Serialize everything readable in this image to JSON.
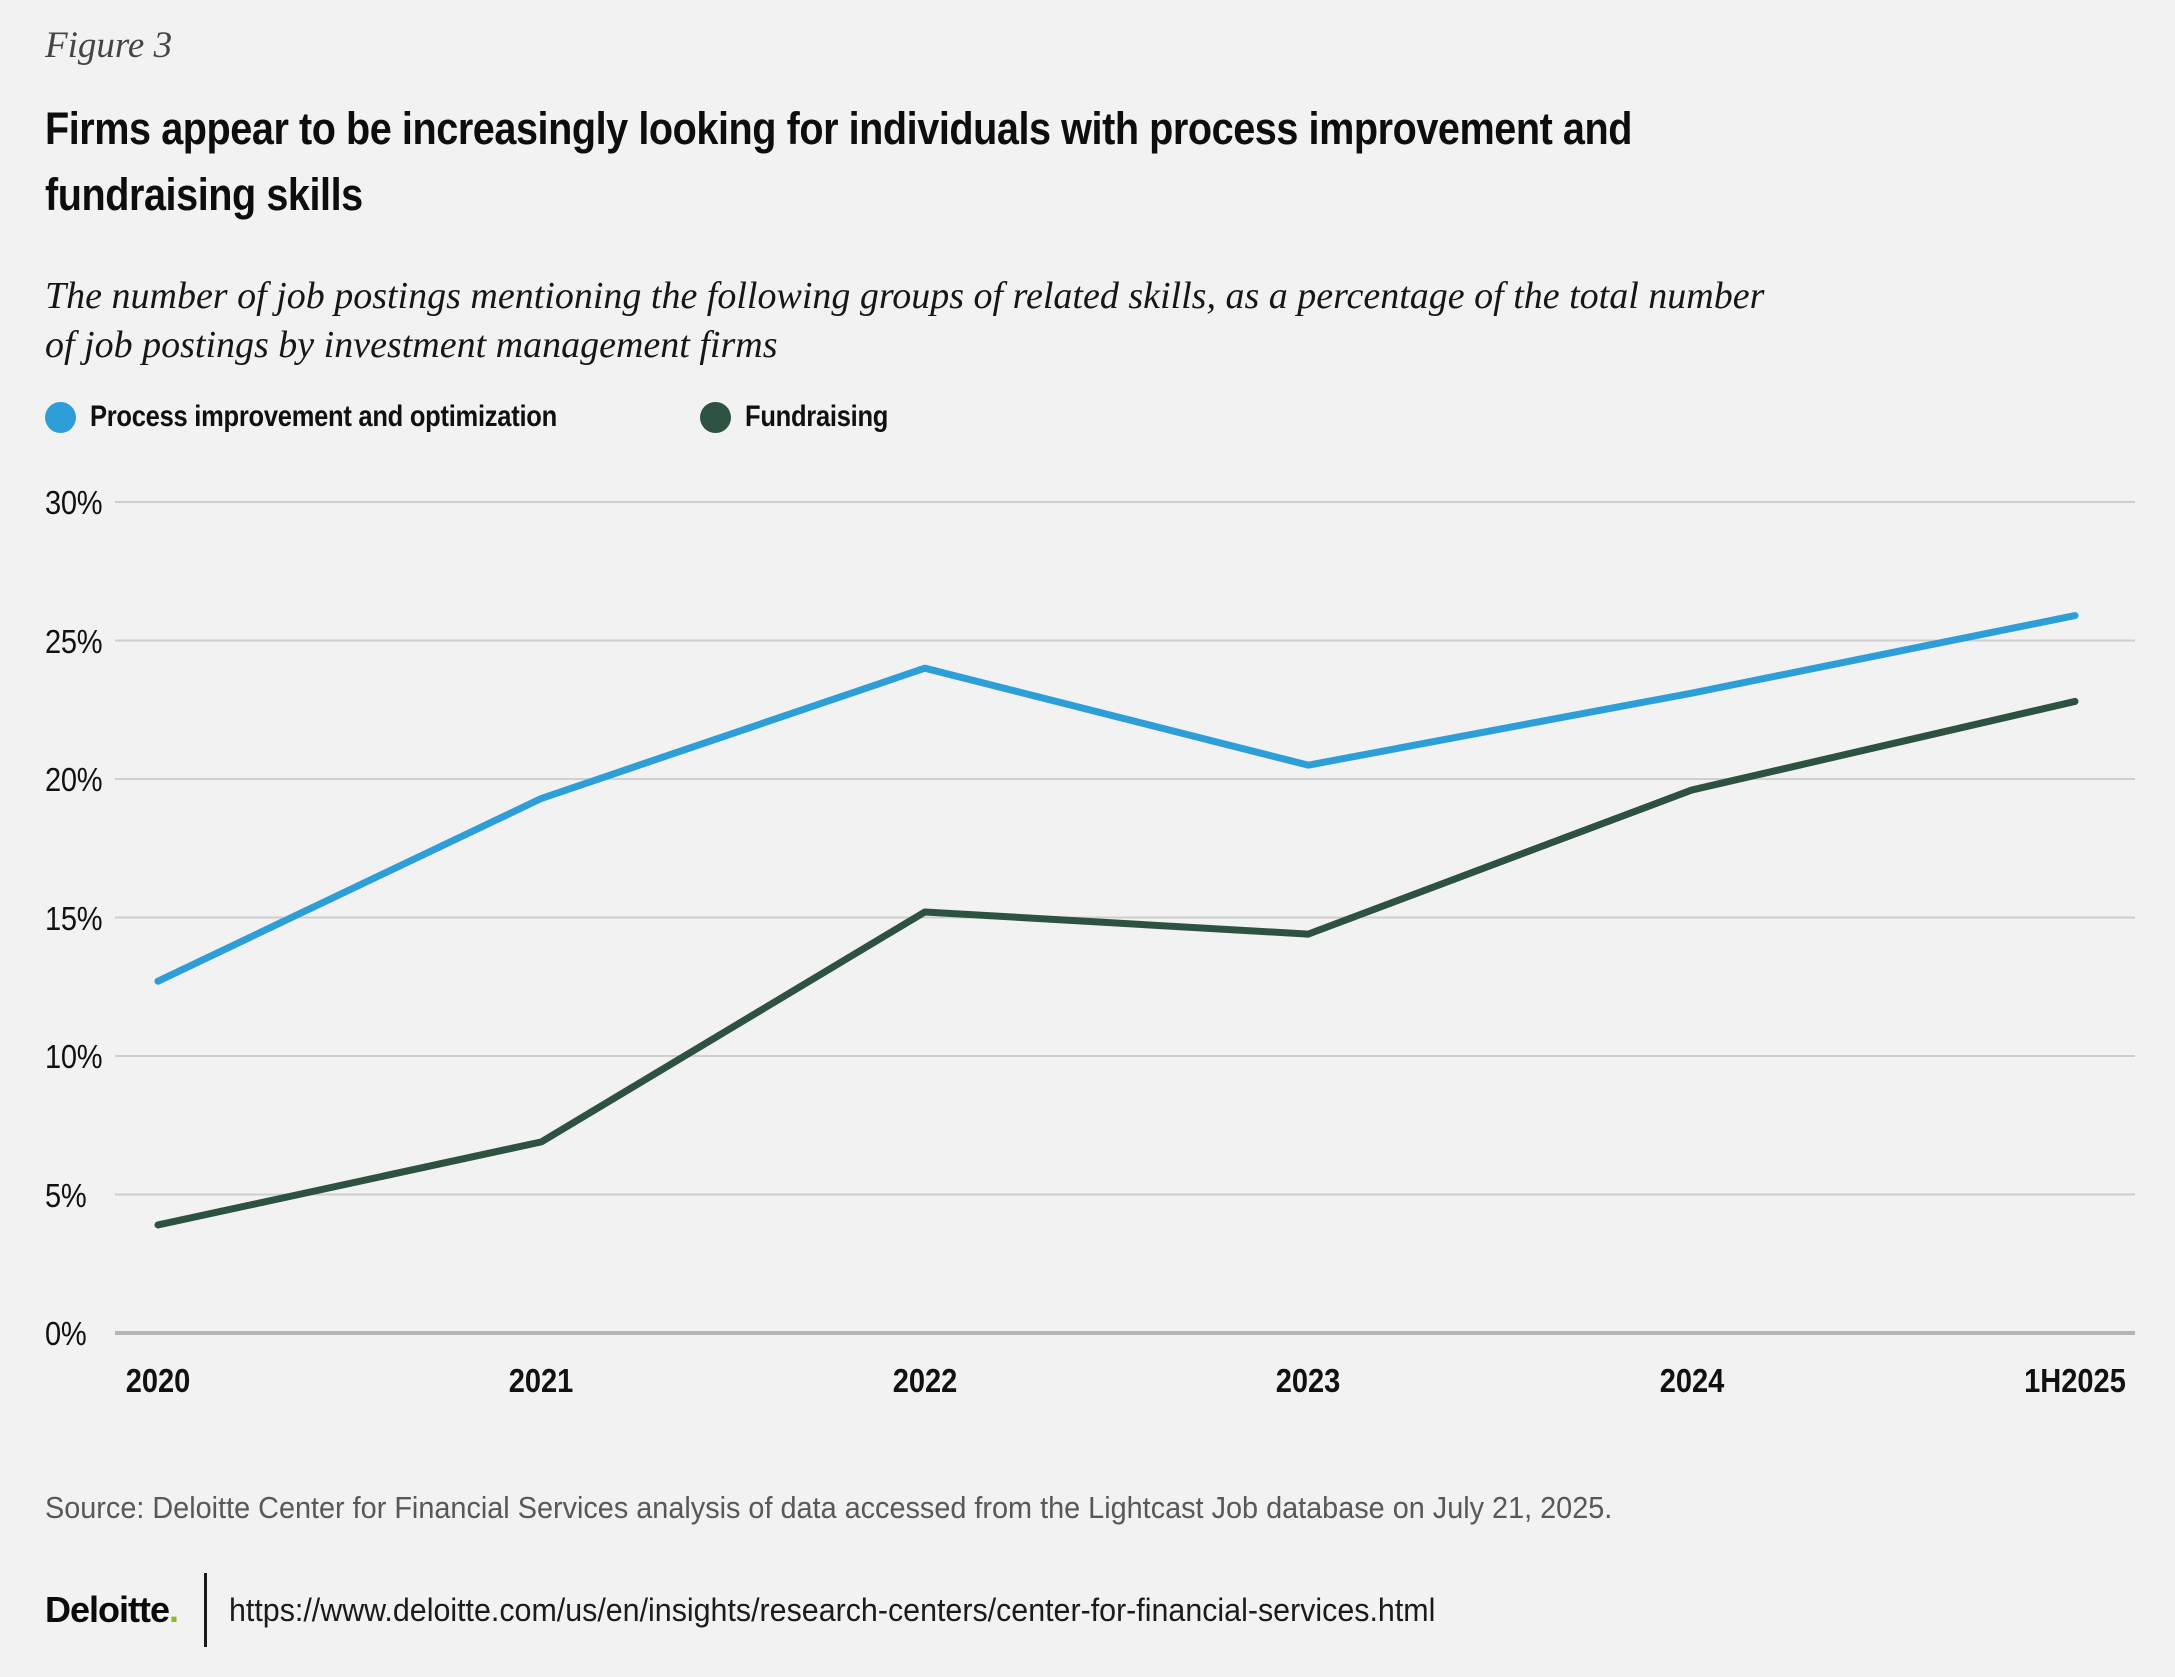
{
  "figure_label": "Figure 3",
  "header": {
    "title_lines": {
      "line1": "Firms appear to be increasingly looking for individuals with process improvement and",
      "line2": "fundraising skills"
    },
    "subtitle_lines": {
      "line1": "The number of job postings mentioning the following groups of related skills, as a percentage of the total number",
      "line2": "of job postings by investment management firms"
    }
  },
  "chart_data": {
    "type": "line",
    "title": "Firms appear to be increasingly looking for individuals with process improvement and fundraising skills",
    "subtitle": "The number of job postings mentioning the following groups of related skills, as a percentage of the total number of job postings by investment management firms",
    "categories": [
      "2020",
      "2021",
      "2022",
      "2023",
      "2024",
      "1H2025"
    ],
    "series": [
      {
        "name": "Process improvement and optimization",
        "color": "#2E9ED9",
        "values": [
          12.7,
          19.3,
          24.0,
          20.5,
          23.1,
          25.9
        ]
      },
      {
        "name": "Fundraising",
        "color": "#2D5242",
        "values": [
          3.9,
          6.9,
          15.2,
          14.4,
          19.6,
          22.8
        ]
      }
    ],
    "xlabel": "",
    "ylabel": "",
    "ylim": [
      0,
      30
    ],
    "ytick_step": 5,
    "ytick_labels": [
      "0%",
      "5%",
      "10%",
      "15%",
      "20%",
      "25%",
      "30%"
    ],
    "grid": true,
    "gridline_color": "#cfcfcf",
    "axisline_color": "#b5b5b5",
    "legend_position": "top-left"
  },
  "source": "Source: Deloitte Center for Financial Services analysis of data accessed from the Lightcast Job database on July 21, 2025.",
  "footer": {
    "brand": "Deloitte",
    "brand_suffix": ".",
    "url": "https://www.deloitte.com/us/en/insights/research-centers/center-for-financial-services.html"
  },
  "colors": {
    "background": "#F2F2F2",
    "brand_green": "#86BC25",
    "text_primary": "#0d0d0d",
    "text_muted": "#585858"
  }
}
